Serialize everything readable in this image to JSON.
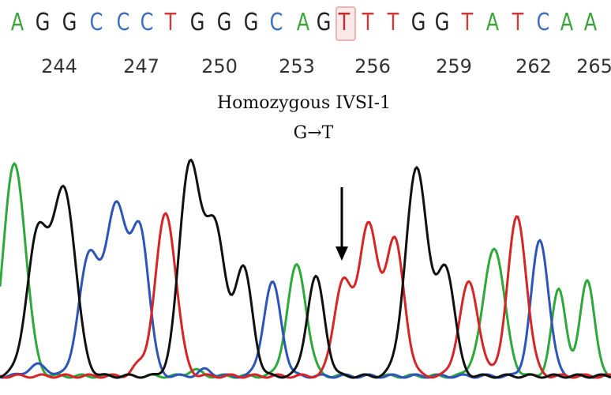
{
  "sequence": {
    "bases": [
      "A",
      "G",
      "G",
      "C",
      "C",
      "C",
      "T",
      "G",
      "G",
      "G",
      "C",
      "A",
      "G",
      "T",
      "T",
      "T",
      "G",
      "G",
      "T",
      "A",
      "T",
      "C",
      "A",
      "A"
    ],
    "base_colors": {
      "A": "#3ba53b",
      "G": "#222222",
      "C": "#3c6fc4",
      "T": "#d23a3a"
    },
    "mutated_index": 13
  },
  "positions": [
    "244",
    "247",
    "250",
    "253",
    "256",
    "259",
    "262",
    "265"
  ],
  "caption": {
    "line1": "Homozygous IVSI-1",
    "line2": "G→T"
  },
  "trace_colors": {
    "green": "#2ea83a",
    "black": "#111111",
    "blue": "#2d55b8",
    "red": "#d42626"
  },
  "marker": {
    "icon": "down-arrow-icon"
  }
}
